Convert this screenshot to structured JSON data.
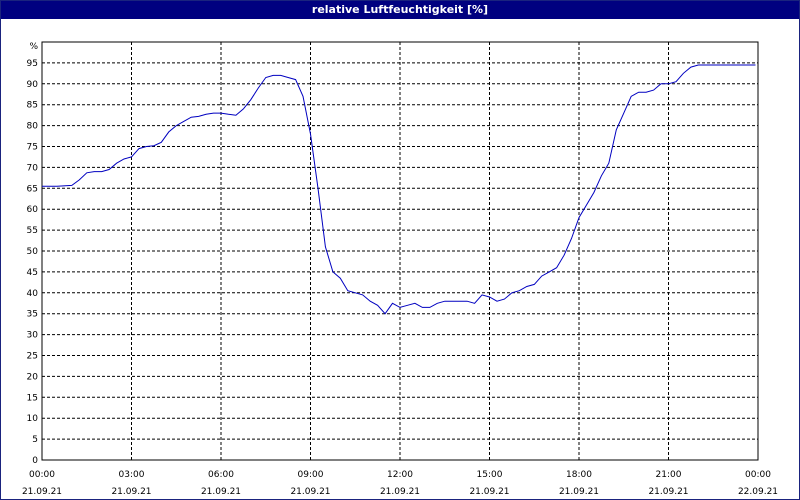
{
  "window": {
    "title": "relative Luftfeuchtigkeit [%]"
  },
  "chart_data": {
    "type": "line",
    "title": "relative Luftfeuchtigkeit [%]",
    "ylabel": "%",
    "xlabel": "",
    "ylim": [
      0,
      100
    ],
    "yticks": [
      0,
      5,
      10,
      15,
      20,
      25,
      30,
      35,
      40,
      45,
      50,
      55,
      60,
      65,
      70,
      75,
      80,
      85,
      90,
      95
    ],
    "xlim": [
      "21.09.21 00:00",
      "22.09.21 00:00"
    ],
    "xticks": [
      {
        "time": "00:00",
        "date": "21.09.21"
      },
      {
        "time": "03:00",
        "date": "21.09.21"
      },
      {
        "time": "06:00",
        "date": "21.09.21"
      },
      {
        "time": "09:00",
        "date": "21.09.21"
      },
      {
        "time": "12:00",
        "date": "21.09.21"
      },
      {
        "time": "15:00",
        "date": "21.09.21"
      },
      {
        "time": "18:00",
        "date": "21.09.21"
      },
      {
        "time": "21:00",
        "date": "21.09.21"
      },
      {
        "time": "00:00",
        "date": "22.09.21"
      }
    ],
    "grid": true,
    "line_color": "#0000c0",
    "series": [
      {
        "x": [
          "00:00",
          "00:30",
          "01:00",
          "01:15",
          "01:30",
          "01:45",
          "02:00",
          "02:15",
          "02:30",
          "02:45",
          "03:00",
          "03:15",
          "03:30",
          "03:45",
          "04:00",
          "04:15",
          "04:30",
          "04:45",
          "05:00",
          "05:15",
          "05:30",
          "05:45",
          "06:00",
          "06:15",
          "06:30",
          "06:45",
          "07:00",
          "07:15",
          "07:30",
          "07:45",
          "08:00",
          "08:15",
          "08:30",
          "08:45",
          "09:00",
          "09:15",
          "09:30",
          "09:45",
          "10:00",
          "10:15",
          "10:30",
          "10:45",
          "11:00",
          "11:15",
          "11:30",
          "11:45",
          "12:00",
          "12:15",
          "12:30",
          "12:45",
          "13:00",
          "13:15",
          "13:30",
          "13:45",
          "14:00",
          "14:15",
          "14:30",
          "14:45",
          "15:00",
          "15:15",
          "15:30",
          "15:45",
          "16:00",
          "16:15",
          "16:30",
          "16:45",
          "17:00",
          "17:15",
          "17:30",
          "17:45",
          "18:00",
          "18:15",
          "18:30",
          "18:45",
          "19:00",
          "19:15",
          "19:30",
          "19:45",
          "20:00",
          "20:15",
          "20:30",
          "20:45",
          "21:00",
          "21:15",
          "21:30",
          "21:45",
          "22:00",
          "22:30",
          "23:00",
          "23:30",
          "23:55"
        ],
        "values": [
          65.5,
          65.5,
          65.7,
          67,
          68.7,
          69,
          69,
          69.5,
          71,
          72,
          72.5,
          74.5,
          75,
          75.2,
          76,
          78.5,
          80,
          81,
          82,
          82.2,
          82.7,
          83,
          83,
          82.7,
          82.5,
          84,
          86.2,
          89,
          91.5,
          92,
          92,
          91.5,
          91,
          87,
          78,
          65,
          51,
          45,
          43.5,
          40.5,
          40,
          39.5,
          38,
          37,
          35,
          37.5,
          36.5,
          37,
          37.5,
          36.5,
          36.5,
          37.5,
          38,
          38,
          38,
          38,
          37.5,
          39.5,
          39,
          38,
          38.5,
          40,
          40.5,
          41.5,
          42,
          44,
          45,
          46,
          49,
          53,
          58,
          61,
          64,
          68,
          71,
          79,
          83,
          87,
          88,
          88,
          88.5,
          90,
          90,
          90.5,
          92.5,
          94,
          94.5,
          94.5,
          94.5,
          94.5,
          94.5
        ]
      }
    ]
  }
}
